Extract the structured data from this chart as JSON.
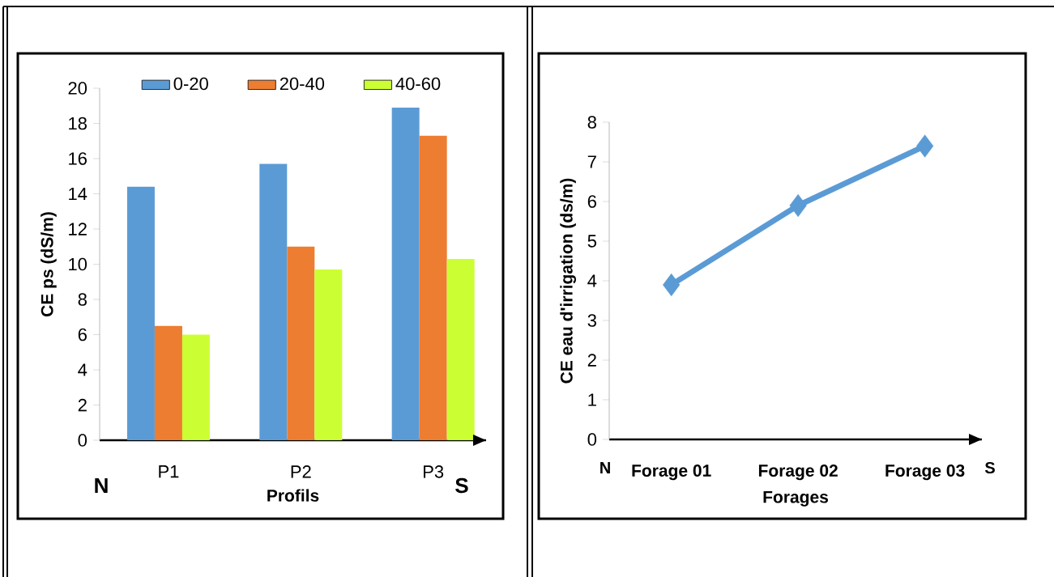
{
  "chart_data": [
    {
      "type": "bar",
      "xlabel": "Profils",
      "ylabel": "CE ps (dS/m)",
      "categories": [
        "P1",
        "P2",
        "P3"
      ],
      "series": [
        {
          "name": "0-20",
          "color": "#5b9bd5",
          "values": [
            14.4,
            15.7,
            18.9
          ]
        },
        {
          "name": "20-40",
          "color": "#ed7d31",
          "values": [
            6.5,
            11.0,
            17.3
          ]
        },
        {
          "name": "40-60",
          "color": "#ccff33",
          "values": [
            6.0,
            9.7,
            10.3
          ]
        }
      ],
      "ylim": [
        0,
        20
      ],
      "yticks": [
        0,
        2,
        4,
        6,
        8,
        10,
        12,
        14,
        16,
        18,
        20
      ],
      "legend": "top",
      "annotations": [
        "N",
        "S"
      ]
    },
    {
      "type": "line",
      "xlabel": "Forages",
      "ylabel": "CE eau  d'irrigation (ds/m)",
      "categories": [
        "Forage 01",
        "Forage 02",
        "Forage 03"
      ],
      "series": [
        {
          "color": "#5b9bd5",
          "values": [
            3.9,
            5.9,
            7.4
          ]
        }
      ],
      "marker": "diamond",
      "line_style": "solid",
      "ylim": [
        0,
        8
      ],
      "yticks": [
        0,
        1,
        2,
        3,
        4,
        5,
        6,
        7,
        8
      ],
      "annotations": [
        "N",
        "S"
      ]
    }
  ]
}
